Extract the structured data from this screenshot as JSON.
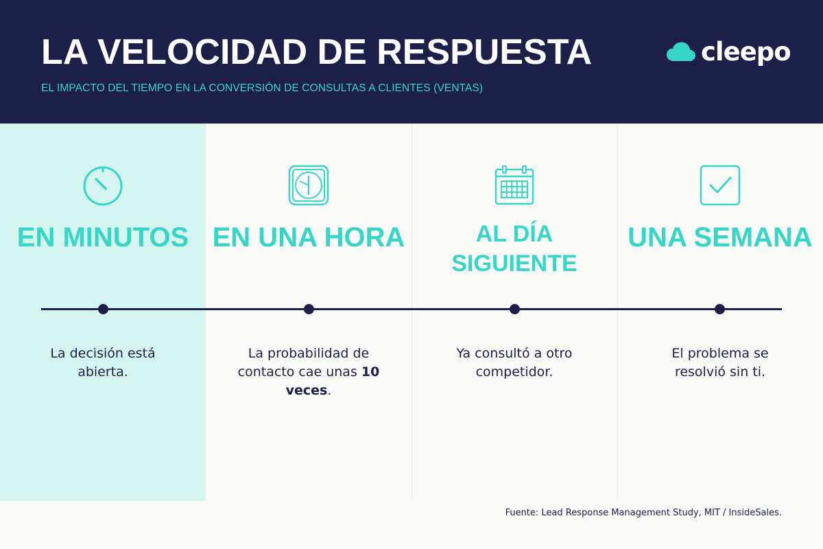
{
  "header": {
    "title": "LA VELOCIDAD DE RESPUESTA",
    "subtitle": "EL IMPACTO DEL TIEMPO EN LA CONVERSIÓN DE CONSULTAS A CLIENTES (VENTAS)",
    "logo_text": "cleepo"
  },
  "colors": {
    "navy": "#1c1f48",
    "teal": "#35d6c6",
    "highlight": "#d3f4ef",
    "background": "#f9f9f8"
  },
  "stages": [
    {
      "icon": "stopwatch-icon",
      "heading": "EN MINUTOS",
      "desc": "La decisión está abierta.",
      "highlighted": true
    },
    {
      "icon": "clock-icon",
      "heading": "EN UNA HORA",
      "desc_before": "La probabilidad de contacto cae unas ",
      "desc_bold": "10 veces",
      "desc_after": ".",
      "highlighted": false
    },
    {
      "icon": "calendar-icon",
      "heading_line1": "AL DÍA",
      "heading_line2": "SIGUIENTE",
      "desc": "Ya consultó a otro competidor.",
      "highlighted": false
    },
    {
      "icon": "checkbox-icon",
      "heading": "UNA SEMANA",
      "desc": "El problema se resolvió sin ti.",
      "highlighted": false
    }
  ],
  "source": "Fuente: Lead Response Management Study, MIT / InsideSales."
}
